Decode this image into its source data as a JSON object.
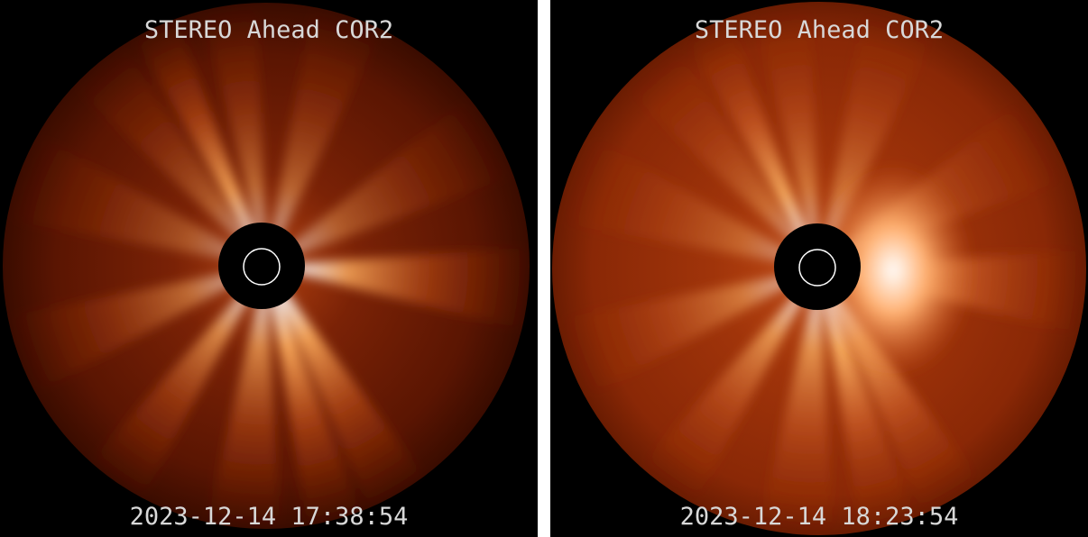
{
  "panels": [
    {
      "title": "STEREO Ahead COR2",
      "timestamp": "2023-12-14 17:38:54"
    },
    {
      "title": "STEREO Ahead COR2",
      "timestamp": "2023-12-14 18:23:54"
    }
  ]
}
